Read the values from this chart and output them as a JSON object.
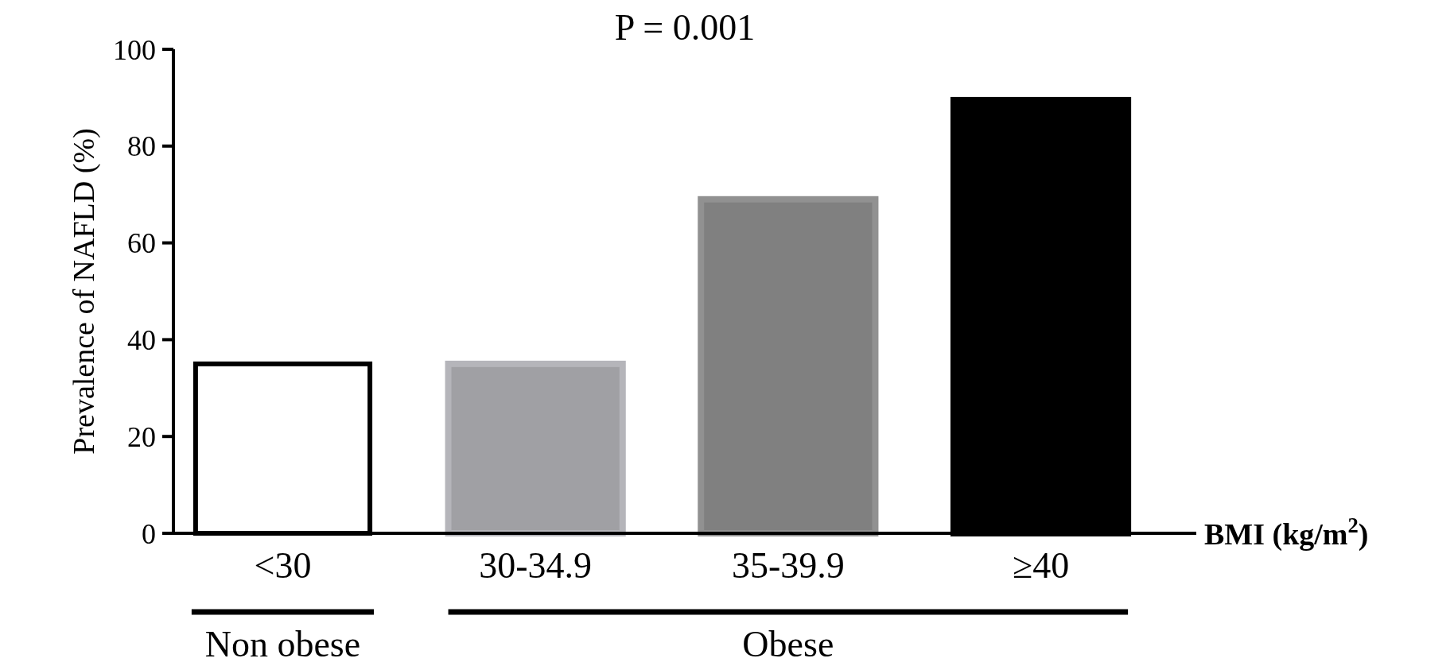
{
  "chart_data": {
    "type": "bar",
    "title": "P = 0.001",
    "xlabel": "BMI (kg/m$^{2}$)",
    "ylabel": "Prevalence of NAFLD (%)",
    "categories": [
      "<30",
      "30-34.9",
      "35-39.9",
      "≥40"
    ],
    "values": [
      35,
      35,
      69,
      89.5
    ],
    "colors": [
      "#ffffff",
      "#a0a0a4",
      "#808080",
      "#000000"
    ],
    "ylim": [
      0,
      100
    ],
    "yticks": [
      0,
      20,
      40,
      60,
      80,
      100
    ],
    "grid": false,
    "annotations": [
      "Non obese",
      "Obese"
    ]
  }
}
